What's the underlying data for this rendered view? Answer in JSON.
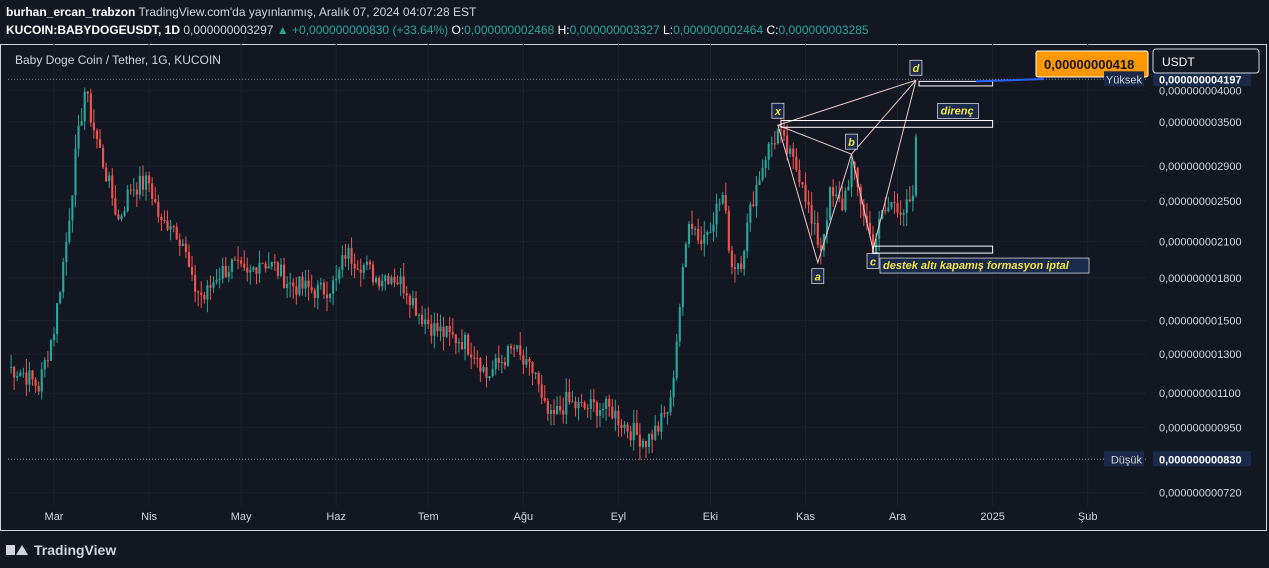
{
  "header": {
    "author": "burhan_ercan_trabzon",
    "published": "TradingView.com'da yayınlanmış, Aralık 07, 2024 04:07:28 EST",
    "symbol": "KUCOIN:BABYDOGEUSDT, 1D",
    "last_price": "0,000000003297",
    "change": "▲ +0,000000000830 (+33.64%)",
    "o_label": "O:",
    "o_value": "0,000000002468",
    "h_label": "H:",
    "h_value": "0,000000003327",
    "l_label": "L:",
    "l_value": "0,000000002464",
    "c_label": "C:",
    "c_value": "0,000000003285"
  },
  "footer": {
    "brand": "TradingView"
  },
  "colors": {
    "up": "#26a69a",
    "down": "#ef5350",
    "background": "#131722",
    "text": "#d1d4dc",
    "accent": "#ff9800",
    "annotation": "#f5e642"
  },
  "chart_data": {
    "type": "candlestick",
    "title": "Baby Doge Coin / Tether, 1G, KUCOIN",
    "currency": "USDT",
    "y_scale": "log",
    "ylim": [
      6.8e-10,
      4.48e-09
    ],
    "price_ticks": [
      {
        "label": "0,000000004000",
        "v": 4e-09
      },
      {
        "label": "0,000000003500",
        "v": 3.5e-09
      },
      {
        "label": "0,000000002900",
        "v": 2.9e-09
      },
      {
        "label": "0,000000002500",
        "v": 2.5e-09
      },
      {
        "label": "0,000000002100",
        "v": 2.1e-09
      },
      {
        "label": "0,000000001800",
        "v": 1.8e-09
      },
      {
        "label": "0,000000001500",
        "v": 1.5e-09
      },
      {
        "label": "0,000000001300",
        "v": 1.3e-09
      },
      {
        "label": "0,000000001100",
        "v": 1.1e-09
      },
      {
        "label": "0,000000000950",
        "v": 9.5e-10
      },
      {
        "label": "0,000000000720",
        "v": 7.2e-10
      }
    ],
    "x_labels": [
      {
        "label": "Mar",
        "date": "2024-03-01"
      },
      {
        "label": "Nis",
        "date": "2024-04-01"
      },
      {
        "label": "May",
        "date": "2024-05-01"
      },
      {
        "label": "Haz",
        "date": "2024-06-01"
      },
      {
        "label": "Tem",
        "date": "2024-07-01"
      },
      {
        "label": "Ağu",
        "date": "2024-08-01"
      },
      {
        "label": "Eyl",
        "date": "2024-09-01"
      },
      {
        "label": "Eki",
        "date": "2024-10-01"
      },
      {
        "label": "Kas",
        "date": "2024-11-01"
      },
      {
        "label": "Ara",
        "date": "2024-12-01"
      },
      {
        "label": "2025",
        "date": "2025-01-01"
      },
      {
        "label": "Şub",
        "date": "2025-02-01"
      }
    ],
    "x_range": [
      "2024-02-15",
      "2025-02-20"
    ],
    "high_marker": {
      "label": "Yüksek",
      "value_text": "0,000000004197",
      "v": 4.197e-09
    },
    "low_marker": {
      "label": "Düşük",
      "value_text": "0,000000000830",
      "v": 8.3e-10
    },
    "target_label": {
      "text": "0,00000000418",
      "v": 4.18e-09
    },
    "pattern_points": [
      {
        "label": "x",
        "date": "2024-10-23",
        "v": 3.45e-09
      },
      {
        "label": "a",
        "date": "2024-11-05",
        "v": 1.92e-09
      },
      {
        "label": "b",
        "date": "2024-11-16",
        "v": 3.05e-09
      },
      {
        "label": "c",
        "date": "2024-11-23",
        "v": 2.03e-09
      },
      {
        "label": "d",
        "date": "2024-12-07",
        "v": 4.18e-09
      }
    ],
    "zones": [
      {
        "label": "direnç",
        "from": "2024-10-24",
        "to": "2025-01-01",
        "low": 3.42e-09,
        "high": 3.52e-09
      },
      {
        "label": "destek altı kapamış formasyon iptal",
        "from": "2024-11-23",
        "to": "2025-01-01",
        "low": 2e-09,
        "high": 2.06e-09
      },
      {
        "label": "",
        "from": "2024-12-08",
        "to": "2025-01-01",
        "low": 4.08e-09,
        "high": 4.16e-09
      }
    ],
    "anchors": [
      {
        "date": "2024-02-15",
        "v": 1.23e-09
      },
      {
        "date": "2024-02-20",
        "v": 1.2e-09
      },
      {
        "date": "2024-02-25",
        "v": 1.13e-09
      },
      {
        "date": "2024-03-01",
        "v": 1.45e-09
      },
      {
        "date": "2024-03-05",
        "v": 2.1e-09
      },
      {
        "date": "2024-03-08",
        "v": 3e-09
      },
      {
        "date": "2024-03-11",
        "v": 4e-09
      },
      {
        "date": "2024-03-14",
        "v": 3.4e-09
      },
      {
        "date": "2024-03-18",
        "v": 2.8e-09
      },
      {
        "date": "2024-03-22",
        "v": 2.3e-09
      },
      {
        "date": "2024-03-26",
        "v": 2.65e-09
      },
      {
        "date": "2024-04-01",
        "v": 2.7e-09
      },
      {
        "date": "2024-04-05",
        "v": 2.25e-09
      },
      {
        "date": "2024-04-08",
        "v": 2.3e-09
      },
      {
        "date": "2024-04-12",
        "v": 2.1e-09
      },
      {
        "date": "2024-04-15",
        "v": 1.75e-09
      },
      {
        "date": "2024-04-19",
        "v": 1.65e-09
      },
      {
        "date": "2024-04-23",
        "v": 1.82e-09
      },
      {
        "date": "2024-04-28",
        "v": 1.9e-09
      },
      {
        "date": "2024-05-03",
        "v": 1.8e-09
      },
      {
        "date": "2024-05-07",
        "v": 1.95e-09
      },
      {
        "date": "2024-05-12",
        "v": 1.88e-09
      },
      {
        "date": "2024-05-17",
        "v": 1.75e-09
      },
      {
        "date": "2024-05-22",
        "v": 1.72e-09
      },
      {
        "date": "2024-05-27",
        "v": 1.7e-09
      },
      {
        "date": "2024-06-01",
        "v": 1.76e-09
      },
      {
        "date": "2024-06-04",
        "v": 2e-09
      },
      {
        "date": "2024-06-09",
        "v": 1.92e-09
      },
      {
        "date": "2024-06-14",
        "v": 1.8e-09
      },
      {
        "date": "2024-06-19",
        "v": 1.83e-09
      },
      {
        "date": "2024-06-24",
        "v": 1.72e-09
      },
      {
        "date": "2024-06-28",
        "v": 1.55e-09
      },
      {
        "date": "2024-07-03",
        "v": 1.45e-09
      },
      {
        "date": "2024-07-08",
        "v": 1.4e-09
      },
      {
        "date": "2024-07-12",
        "v": 1.38e-09
      },
      {
        "date": "2024-07-17",
        "v": 1.3e-09
      },
      {
        "date": "2024-07-20",
        "v": 1.18e-09
      },
      {
        "date": "2024-07-24",
        "v": 1.25e-09
      },
      {
        "date": "2024-07-29",
        "v": 1.33e-09
      },
      {
        "date": "2024-08-02",
        "v": 1.22e-09
      },
      {
        "date": "2024-08-05",
        "v": 1.2e-09
      },
      {
        "date": "2024-08-07",
        "v": 1.05e-09
      },
      {
        "date": "2024-08-10",
        "v": 9.8e-10
      },
      {
        "date": "2024-08-15",
        "v": 1.06e-09
      },
      {
        "date": "2024-08-20",
        "v": 1.03e-09
      },
      {
        "date": "2024-08-25",
        "v": 1.04e-09
      },
      {
        "date": "2024-08-30",
        "v": 1.02e-09
      },
      {
        "date": "2024-09-03",
        "v": 9.6e-10
      },
      {
        "date": "2024-09-07",
        "v": 9.2e-10
      },
      {
        "date": "2024-09-10",
        "v": 9e-10
      },
      {
        "date": "2024-09-14",
        "v": 9.5e-10
      },
      {
        "date": "2024-09-18",
        "v": 1.05e-09
      },
      {
        "date": "2024-09-21",
        "v": 1.6e-09
      },
      {
        "date": "2024-09-24",
        "v": 2.35e-09
      },
      {
        "date": "2024-09-28",
        "v": 2.1e-09
      },
      {
        "date": "2024-10-02",
        "v": 2.35e-09
      },
      {
        "date": "2024-10-05",
        "v": 2.55e-09
      },
      {
        "date": "2024-10-08",
        "v": 1.9e-09
      },
      {
        "date": "2024-10-11",
        "v": 1.95e-09
      },
      {
        "date": "2024-10-15",
        "v": 2.55e-09
      },
      {
        "date": "2024-10-19",
        "v": 3.05e-09
      },
      {
        "date": "2024-10-23",
        "v": 3.35e-09
      },
      {
        "date": "2024-10-27",
        "v": 3e-09
      },
      {
        "date": "2024-10-31",
        "v": 2.75e-09
      },
      {
        "date": "2024-11-03",
        "v": 2.25e-09
      },
      {
        "date": "2024-11-06",
        "v": 2.05e-09
      },
      {
        "date": "2024-11-09",
        "v": 2.55e-09
      },
      {
        "date": "2024-11-13",
        "v": 2.45e-09
      },
      {
        "date": "2024-11-16",
        "v": 2.9e-09
      },
      {
        "date": "2024-11-19",
        "v": 2.5e-09
      },
      {
        "date": "2024-11-23",
        "v": 2.05e-09
      },
      {
        "date": "2024-11-26",
        "v": 2.35e-09
      },
      {
        "date": "2024-11-30",
        "v": 2.5e-09
      },
      {
        "date": "2024-12-03",
        "v": 2.4e-09
      },
      {
        "date": "2024-12-06",
        "v": 2.46e-09
      },
      {
        "date": "2024-12-07",
        "v": 3.285e-09
      }
    ]
  }
}
